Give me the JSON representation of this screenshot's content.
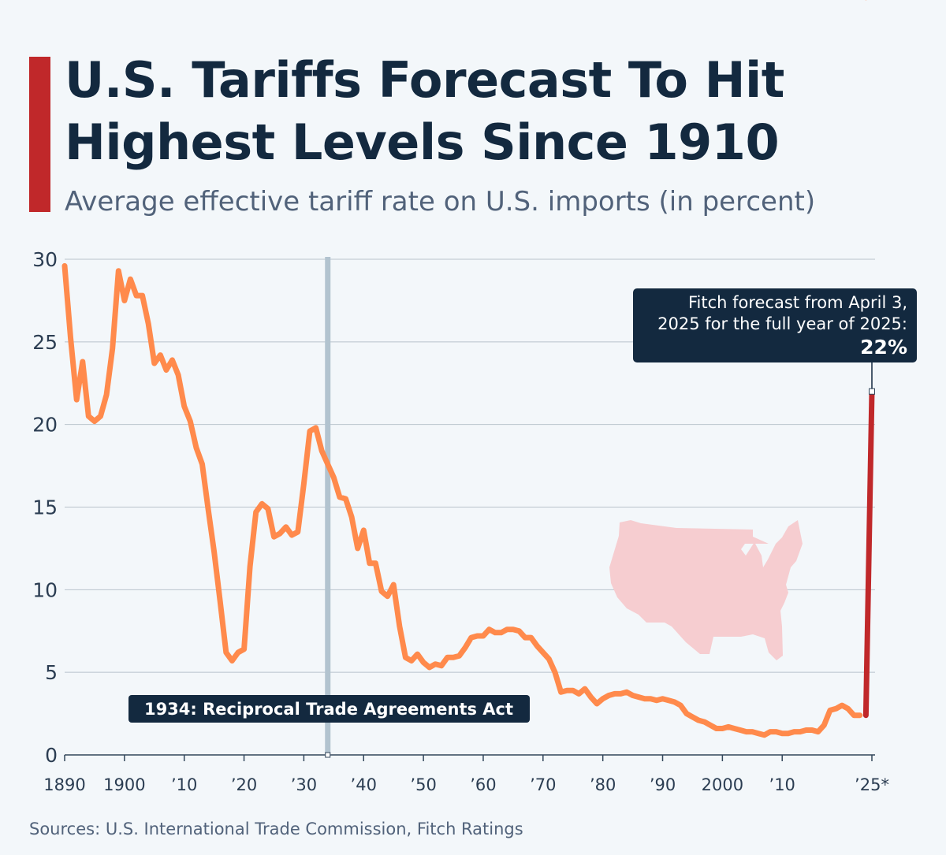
{
  "header": {
    "title_line1": "U.S. Tariffs Forecast To Hit",
    "title_line2": "Highest Levels Since 1910",
    "subtitle": "Average effective tariff rate on U.S. imports (in percent)"
  },
  "footer": {
    "source": "Sources: U.S. International Trade Commission, Fitch Ratings"
  },
  "colors": {
    "accent": "#c0282a",
    "title": "#13293f",
    "line": "#ff8a4c",
    "forecast": "#c0282a",
    "grid": "#b9c3cc",
    "marker_band": "#b2c3cf",
    "label_box": "#13293f",
    "map": "#f6cdd0"
  },
  "icons": {
    "map": "us-map-icon"
  },
  "chart_data": {
    "type": "line",
    "title": "",
    "xlabel": "",
    "ylabel": "",
    "xlim": [
      1890,
      2025
    ],
    "ylim": [
      0,
      30
    ],
    "yticks": [
      0,
      5,
      10,
      15,
      20,
      25,
      30
    ],
    "xticks": [
      {
        "value": 1890,
        "label": "1890"
      },
      {
        "value": 1900,
        "label": "1900"
      },
      {
        "value": 1910,
        "label": "’10"
      },
      {
        "value": 1920,
        "label": "’20"
      },
      {
        "value": 1930,
        "label": "’30"
      },
      {
        "value": 1940,
        "label": "’40"
      },
      {
        "value": 1950,
        "label": "’50"
      },
      {
        "value": 1960,
        "label": "’60"
      },
      {
        "value": 1970,
        "label": "’70"
      },
      {
        "value": 1980,
        "label": "’80"
      },
      {
        "value": 1990,
        "label": "’90"
      },
      {
        "value": 2000,
        "label": "2000"
      },
      {
        "value": 2010,
        "label": "’10"
      },
      {
        "value": 2025,
        "label": "’25*"
      }
    ],
    "grid": true,
    "series": [
      {
        "kind": "historical",
        "x": [
          1890,
          1891,
          1892,
          1893,
          1894,
          1895,
          1896,
          1897,
          1898,
          1899,
          1900,
          1901,
          1902,
          1903,
          1904,
          1905,
          1906,
          1907,
          1908,
          1909,
          1910,
          1911,
          1912,
          1913,
          1914,
          1915,
          1916,
          1917,
          1918,
          1919,
          1920,
          1921,
          1922,
          1923,
          1924,
          1925,
          1926,
          1927,
          1928,
          1929,
          1930,
          1931,
          1932,
          1933,
          1934,
          1935,
          1936,
          1937,
          1938,
          1939,
          1940,
          1941,
          1942,
          1943,
          1944,
          1945,
          1946,
          1947,
          1948,
          1949,
          1950,
          1951,
          1952,
          1953,
          1954,
          1955,
          1956,
          1957,
          1958,
          1959,
          1960,
          1961,
          1962,
          1963,
          1964,
          1965,
          1966,
          1967,
          1968,
          1969,
          1970,
          1971,
          1972,
          1973,
          1974,
          1975,
          1976,
          1977,
          1978,
          1979,
          1980,
          1981,
          1982,
          1983,
          1984,
          1985,
          1986,
          1987,
          1988,
          1989,
          1990,
          1991,
          1992,
          1993,
          1994,
          1995,
          1996,
          1997,
          1998,
          1999,
          2000,
          2001,
          2002,
          2003,
          2004,
          2005,
          2006,
          2007,
          2008,
          2009,
          2010,
          2011,
          2012,
          2013,
          2014,
          2015,
          2016,
          2017,
          2018,
          2019,
          2020,
          2021,
          2022,
          2023,
          2024
        ],
        "values": [
          29.6,
          25.2,
          21.5,
          23.8,
          20.5,
          20.2,
          20.5,
          21.8,
          24.6,
          29.3,
          27.5,
          28.8,
          27.8,
          27.8,
          26.1,
          23.7,
          24.2,
          23.3,
          23.9,
          23.0,
          21.1,
          20.2,
          18.6,
          17.6,
          14.9,
          12.3,
          9.3,
          6.2,
          5.7,
          6.2,
          6.4,
          11.4,
          14.7,
          15.2,
          14.9,
          13.2,
          13.4,
          13.8,
          13.3,
          13.5,
          16.4,
          19.6,
          19.8,
          18.4,
          17.6,
          16.8,
          15.6,
          15.5,
          14.4,
          12.5,
          13.6,
          11.6,
          11.6,
          9.9,
          9.6,
          10.3,
          7.8,
          5.9,
          5.7,
          6.1,
          5.6,
          5.3,
          5.5,
          5.4,
          5.9,
          5.9,
          6.0,
          6.5,
          7.1,
          7.2,
          7.2,
          7.6,
          7.4,
          7.4,
          7.6,
          7.6,
          7.5,
          7.1,
          7.1,
          6.6,
          6.2,
          5.8,
          5.0,
          3.8,
          3.9,
          3.9,
          3.7,
          4.0,
          3.5,
          3.1,
          3.4,
          3.6,
          3.7,
          3.7,
          3.8,
          3.6,
          3.5,
          3.4,
          3.4,
          3.3,
          3.4,
          3.3,
          3.2,
          3.0,
          2.5,
          2.3,
          2.1,
          2.0,
          1.8,
          1.6,
          1.6,
          1.7,
          1.6,
          1.5,
          1.4,
          1.4,
          1.3,
          1.2,
          1.4,
          1.4,
          1.3,
          1.3,
          1.4,
          1.4,
          1.5,
          1.5,
          1.4,
          1.8,
          2.7,
          2.8,
          3.0,
          2.8,
          2.4,
          2.4
        ]
      },
      {
        "kind": "forecast",
        "x": [
          2024,
          2025
        ],
        "values": [
          2.4,
          22.0
        ]
      }
    ],
    "annotations": {
      "event": {
        "x": 1934,
        "label": "1934: Reciprocal Trade Agreements Act"
      },
      "forecast": {
        "x": 2025,
        "y": 22,
        "line1": "Fitch forecast from April 3,",
        "line2": "2025 for the full year of 2025:",
        "value_label": "22%"
      }
    }
  }
}
